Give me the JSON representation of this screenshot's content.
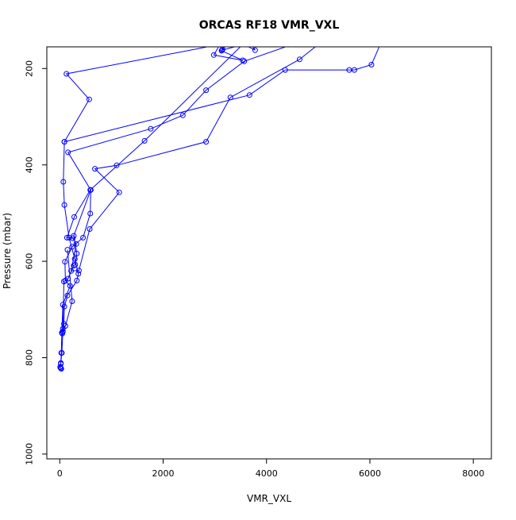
{
  "chart_data": {
    "type": "line",
    "title": "ORCAS RF18 VMR_VXL",
    "xlabel": "VMR_VXL",
    "ylabel": "Pressure (mbar)",
    "xlim": [
      -250,
      8350
    ],
    "ylim": [
      1010,
      155
    ],
    "y_reversed": true,
    "grid": false,
    "legend": "none",
    "series_color": "#0000ff",
    "x_ticks": [
      {
        "value": 0,
        "label": "0"
      },
      {
        "value": 2000,
        "label": "2000"
      },
      {
        "value": 4000,
        "label": "4000"
      },
      {
        "value": 6000,
        "label": "6000"
      },
      {
        "value": 8000,
        "label": "8000"
      }
    ],
    "y_ticks": [
      {
        "value": 200,
        "label": "200"
      },
      {
        "value": 400,
        "label": "400"
      },
      {
        "value": 600,
        "label": "600"
      },
      {
        "value": 800,
        "label": "800"
      },
      {
        "value": 1000,
        "label": "1000"
      }
    ],
    "series": [
      {
        "points": [
          [
            3180,
            150
          ],
          [
            3130,
            163
          ],
          [
            3540,
            183
          ],
          [
            2980,
            172
          ],
          [
            3100,
            150
          ],
          [
            130,
            211
          ],
          [
            570,
            264
          ],
          [
            90,
            352
          ],
          [
            70,
            435
          ],
          [
            90,
            483
          ],
          [
            180,
            551
          ],
          [
            290,
            595
          ],
          [
            360,
            626
          ],
          [
            330,
            640
          ],
          [
            150,
            671
          ],
          [
            90,
            694
          ],
          [
            80,
            730
          ],
          [
            60,
            746
          ],
          [
            40,
            790
          ],
          [
            20,
            811
          ],
          [
            10,
            819
          ],
          [
            20,
            822
          ],
          [
            30,
            823
          ]
        ]
      },
      {
        "points": [
          [
            4500,
            150
          ],
          [
            3570,
            185
          ],
          [
            2830,
            245
          ],
          [
            2380,
            297
          ],
          [
            1760,
            325
          ],
          [
            160,
            374
          ],
          [
            600,
            452
          ],
          [
            590,
            501
          ],
          [
            450,
            551
          ],
          [
            240,
            570
          ],
          [
            100,
            601
          ],
          [
            110,
            640
          ],
          [
            200,
            651
          ],
          [
            60,
            690
          ],
          [
            40,
            748
          ],
          [
            30,
            790
          ],
          [
            20,
            813
          ],
          [
            10,
            820
          ]
        ]
      },
      {
        "points": [
          [
            6200,
            150
          ],
          [
            6030,
            192
          ],
          [
            5700,
            203
          ],
          [
            5600,
            203
          ],
          [
            4360,
            203
          ],
          [
            3670,
            255
          ],
          [
            90,
            352
          ]
        ]
      },
      {
        "points": [
          [
            5000,
            150
          ],
          [
            4640,
            181
          ],
          [
            3300,
            260
          ],
          [
            2830,
            352
          ],
          [
            1100,
            401
          ],
          [
            680,
            408
          ],
          [
            1150,
            457
          ],
          [
            580,
            533
          ],
          [
            370,
            619
          ],
          [
            220,
            620
          ],
          [
            320,
            564
          ],
          [
            250,
            552
          ],
          [
            140,
            551
          ],
          [
            280,
            508
          ],
          [
            590,
            452
          ],
          [
            1640,
            350
          ],
          [
            3540,
            150
          ]
        ]
      },
      {
        "points": [
          [
            3700,
            150
          ],
          [
            3780,
            162
          ],
          [
            3560,
            150
          ],
          [
            3140,
            162
          ],
          [
            3210,
            150
          ],
          [
            3150,
            160
          ],
          [
            3070,
            150
          ]
        ]
      },
      {
        "points": [
          [
            600,
            452
          ],
          [
            270,
            547
          ],
          [
            330,
            584
          ],
          [
            300,
            607
          ],
          [
            270,
            609
          ],
          [
            160,
            636
          ],
          [
            80,
            642
          ],
          [
            60,
            740
          ],
          [
            60,
            746
          ]
        ]
      },
      {
        "points": [
          [
            150,
            576
          ],
          [
            240,
            683
          ],
          [
            110,
            734
          ],
          [
            50,
            750
          ]
        ]
      }
    ]
  }
}
